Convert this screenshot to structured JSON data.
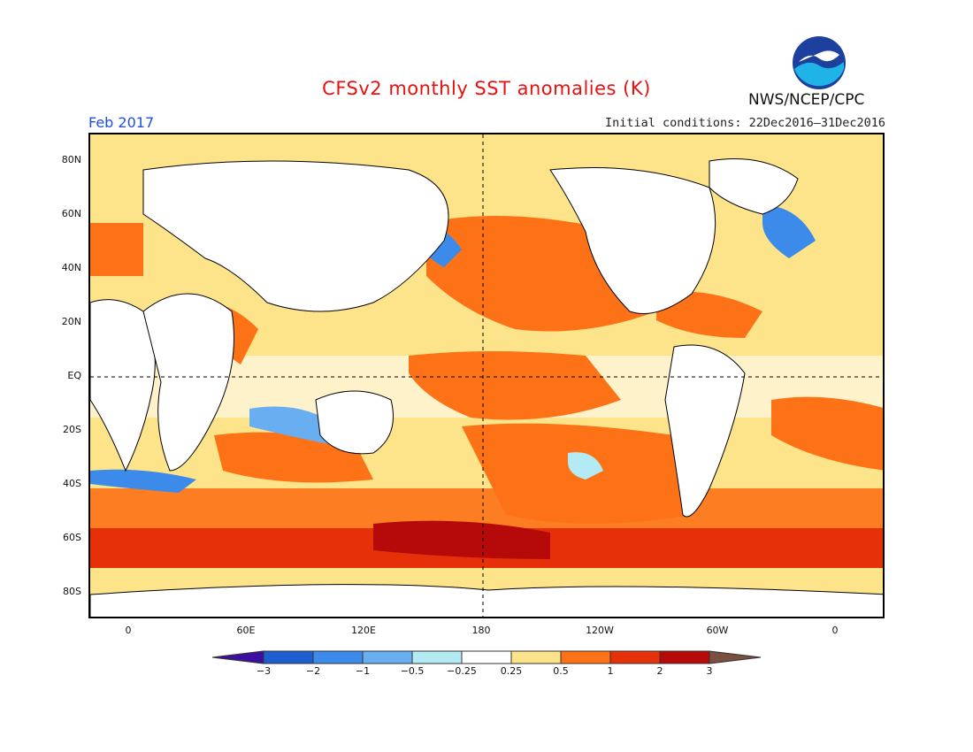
{
  "header": {
    "title": "CFSv2 monthly SST anomalies (K)",
    "month": "Feb 2017",
    "initial_conditions": "Initial conditions: 22Dec2016–31Dec2016",
    "agency": "NWS/NCEP/CPC",
    "logo_text": "NOAA"
  },
  "map": {
    "lat_labels": [
      "80N",
      "60N",
      "40N",
      "20N",
      "EQ",
      "20S",
      "40S",
      "60S",
      "80S"
    ],
    "lon_labels": [
      "0",
      "60E",
      "120E",
      "180",
      "120W",
      "60W",
      "0"
    ],
    "dateline_label": "180",
    "equator_label": "EQ"
  },
  "colorbar": {
    "labels": [
      "−3",
      "−2",
      "−1",
      "−0.5",
      "−0.25",
      "0.25",
      "0.5",
      "1",
      "2",
      "3"
    ],
    "colors": [
      "#3c0fa0",
      "#1e5fd0",
      "#3c8aea",
      "#6aaef2",
      "#b4eaf4",
      "#ffffff",
      "#fde38a",
      "#fd7216",
      "#e5300a",
      "#b5090a",
      "#7a5040"
    ]
  },
  "colors": {
    "title": "#e8110f",
    "month": "#1f4fe0",
    "anomaly_warm": "#fd7216",
    "anomaly_strong": "#e5300a",
    "anomaly_light": "#fde38a",
    "anomaly_cold": "#3c8aea"
  }
}
